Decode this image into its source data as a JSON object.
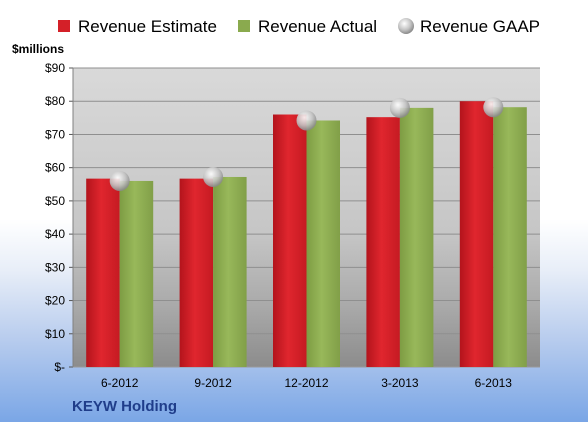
{
  "chart_data": {
    "type": "bar",
    "company": "KEYW Holding",
    "unit_label": "$millions",
    "categories": [
      "6-2012",
      "9-2012",
      "12-2012",
      "3-2013",
      "6-2013"
    ],
    "series": [
      {
        "name": "Revenue Estimate",
        "kind": "bar",
        "color": "#d42028",
        "values": [
          56.7,
          56.7,
          76.0,
          75.2,
          80.0
        ]
      },
      {
        "name": "Revenue Actual",
        "kind": "bar",
        "color": "#8aaa4e",
        "values": [
          56.0,
          57.2,
          74.2,
          78.0,
          78.2
        ]
      },
      {
        "name": "Revenue GAAP",
        "kind": "marker",
        "color": "#c8c8c8",
        "values": [
          56.0,
          57.2,
          74.2,
          78.0,
          78.2
        ]
      }
    ],
    "y_ticks": [
      "$-",
      "$10",
      "$20",
      "$30",
      "$40",
      "$50",
      "$60",
      "$70",
      "$80",
      "$90"
    ],
    "ylim": [
      0,
      90
    ],
    "grid": true,
    "legend_position": "top"
  }
}
